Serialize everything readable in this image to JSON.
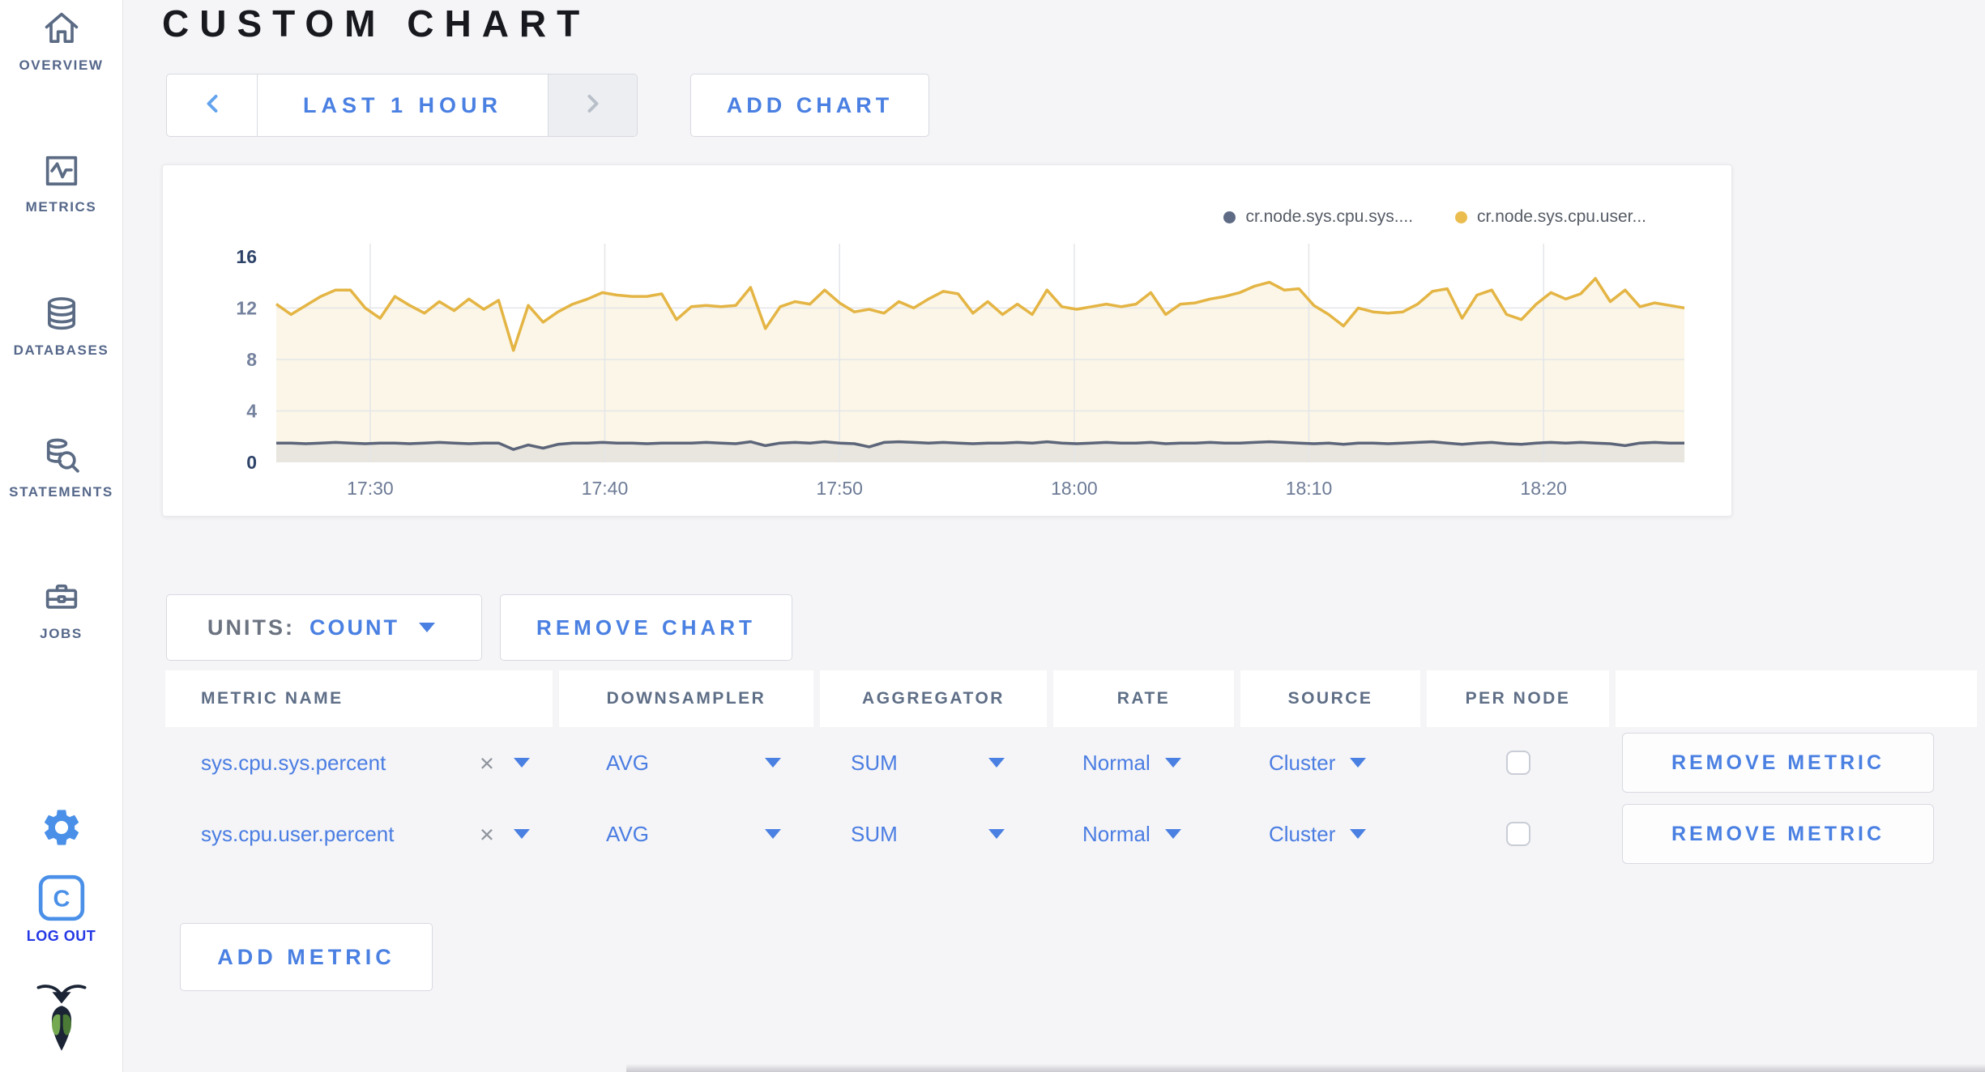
{
  "sidebar": {
    "items": [
      {
        "label": "OVERVIEW",
        "icon": "home-icon"
      },
      {
        "label": "METRICS",
        "icon": "metrics-icon"
      },
      {
        "label": "DATABASES",
        "icon": "database-icon"
      },
      {
        "label": "STATEMENTS",
        "icon": "statements-icon"
      },
      {
        "label": "JOBS",
        "icon": "jobs-icon"
      }
    ],
    "logout_label": "LOG OUT",
    "logout_letter": "C"
  },
  "header": {
    "title": "CUSTOM CHART"
  },
  "toolbar": {
    "time_range_label": "LAST 1 HOUR",
    "add_chart_label": "ADD CHART"
  },
  "chart_controls": {
    "units_label": "UNITS:",
    "units_value": "COUNT",
    "remove_chart_label": "REMOVE CHART",
    "add_metric_label": "ADD METRIC"
  },
  "metrics_table": {
    "columns": [
      "METRIC NAME",
      "DOWNSAMPLER",
      "AGGREGATOR",
      "RATE",
      "SOURCE",
      "PER NODE",
      ""
    ],
    "clear_symbol": "×",
    "rows": [
      {
        "metric_name": "sys.cpu.sys.percent",
        "downsampler": "AVG",
        "aggregator": "SUM",
        "rate": "Normal",
        "source": "Cluster",
        "per_node_checked": false,
        "remove_label": "REMOVE METRIC"
      },
      {
        "metric_name": "sys.cpu.user.percent",
        "downsampler": "AVG",
        "aggregator": "SUM",
        "rate": "Normal",
        "source": "Cluster",
        "per_node_checked": false,
        "remove_label": "REMOVE METRIC"
      }
    ]
  },
  "chart_data": {
    "type": "line",
    "legend": [
      {
        "label": "cr.node.sys.cpu.sys....",
        "color": "#5f6b85"
      },
      {
        "label": "cr.node.sys.cpu.user...",
        "color": "#eabd4e"
      }
    ],
    "x_ticks": {
      "labels": [
        "17:30",
        "17:40",
        "17:50",
        "18:00",
        "18:10",
        "18:20"
      ],
      "fracs": [
        0.0667,
        0.2333,
        0.4,
        0.5667,
        0.7333,
        0.9
      ]
    },
    "y_ticks": [
      16,
      12,
      8,
      4,
      0
    ],
    "grid_y": [
      4,
      8,
      12
    ],
    "ylim": [
      0,
      17
    ],
    "series": [
      {
        "name": "cr.node.sys.cpu.sys.percent",
        "color": "#5c6579",
        "fill": "#e9e6df",
        "values": [
          1.5,
          1.5,
          1.45,
          1.5,
          1.55,
          1.5,
          1.45,
          1.5,
          1.5,
          1.45,
          1.5,
          1.55,
          1.5,
          1.45,
          1.5,
          1.5,
          1.0,
          1.35,
          1.1,
          1.4,
          1.5,
          1.5,
          1.55,
          1.5,
          1.5,
          1.45,
          1.5,
          1.5,
          1.5,
          1.55,
          1.5,
          1.45,
          1.6,
          1.3,
          1.5,
          1.55,
          1.5,
          1.6,
          1.5,
          1.45,
          1.2,
          1.55,
          1.6,
          1.55,
          1.5,
          1.55,
          1.5,
          1.45,
          1.5,
          1.5,
          1.55,
          1.5,
          1.6,
          1.5,
          1.45,
          1.5,
          1.55,
          1.5,
          1.5,
          1.55,
          1.45,
          1.5,
          1.5,
          1.55,
          1.5,
          1.5,
          1.55,
          1.6,
          1.55,
          1.5,
          1.45,
          1.5,
          1.4,
          1.5,
          1.5,
          1.45,
          1.5,
          1.55,
          1.6,
          1.5,
          1.4,
          1.5,
          1.55,
          1.45,
          1.4,
          1.5,
          1.55,
          1.5,
          1.55,
          1.5,
          1.45,
          1.3,
          1.5,
          1.55,
          1.5,
          1.5
        ]
      },
      {
        "name": "cr.node.sys.cpu.user.percent",
        "color": "#e4b544",
        "fill": "#fbf6e7",
        "values": [
          12.3,
          11.5,
          12.2,
          12.9,
          13.4,
          13.4,
          12.0,
          11.2,
          12.9,
          12.2,
          11.6,
          12.5,
          11.8,
          12.7,
          11.9,
          12.6,
          8.7,
          12.2,
          10.9,
          11.7,
          12.3,
          12.7,
          13.2,
          13.0,
          12.9,
          12.9,
          13.1,
          11.1,
          12.1,
          12.2,
          12.1,
          12.2,
          13.6,
          10.4,
          12.1,
          12.5,
          12.3,
          13.4,
          12.4,
          11.7,
          11.9,
          11.6,
          12.5,
          12.0,
          12.7,
          13.3,
          13.1,
          11.6,
          12.5,
          11.5,
          12.3,
          11.5,
          13.4,
          12.1,
          11.9,
          12.1,
          12.3,
          12.1,
          12.3,
          13.2,
          11.5,
          12.3,
          12.4,
          12.7,
          12.9,
          13.2,
          13.7,
          14.0,
          13.4,
          13.5,
          12.2,
          11.5,
          10.6,
          12.0,
          11.7,
          11.6,
          11.7,
          12.3,
          13.3,
          13.5,
          11.2,
          13.0,
          13.4,
          11.5,
          11.1,
          12.3,
          13.2,
          12.7,
          13.1,
          14.3,
          12.5,
          13.4,
          12.1,
          12.4,
          12.2,
          12.0
        ]
      }
    ]
  },
  "colors": {
    "accent_blue": "#4a80e2",
    "logout_blue": "#2438e5",
    "icon_blue": "#4a90e8",
    "slate": "#5b6b84",
    "series_yellow": "#e4b544",
    "series_gray": "#5c6579"
  }
}
